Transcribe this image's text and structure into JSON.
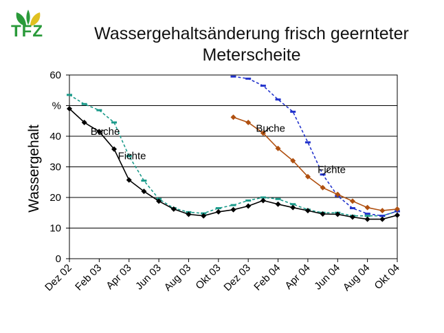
{
  "logo": {
    "text": "TFZ",
    "colors": {
      "green": "#2a9a3a",
      "yellow": "#e0c020"
    }
  },
  "chart_data": {
    "type": "line",
    "title_line1": "Wassergehaltsänderung frisch geernteter",
    "title_line2": "Meterscheite",
    "ylabel": "Wassergehalt",
    "yunit": "%",
    "ylim": [
      0,
      60
    ],
    "yticks": [
      0,
      10,
      20,
      30,
      40,
      50,
      60
    ],
    "ytick_labels": [
      "0",
      "10",
      "20",
      "30",
      "40",
      "%",
      "60"
    ],
    "x_range": [
      0,
      22
    ],
    "x_categories": [
      "Dez 02",
      "Feb 03",
      "Apr 03",
      "Jun 03",
      "Aug 03",
      "Okt 03",
      "Dez 03",
      "Feb 04",
      "Apr 04",
      "Jun 04",
      "Aug 04",
      "Okt 04"
    ],
    "x_category_positions": [
      0,
      2,
      4,
      6,
      8,
      10,
      12,
      14,
      16,
      18,
      20,
      22
    ],
    "grid": "horizontal",
    "series": [
      {
        "name": "Fichte",
        "batch": 1,
        "color": "#1a9a8a",
        "dash": "4,3",
        "marker": "dash",
        "x": [
          0,
          1,
          2,
          3,
          4,
          5,
          6,
          7,
          8,
          9,
          10,
          11,
          12,
          13,
          14,
          15,
          16,
          17,
          18,
          19,
          20,
          21,
          22
        ],
        "y": [
          53.5,
          50.5,
          48.5,
          44.5,
          33.5,
          25.5,
          19.5,
          16.5,
          15.2,
          14.8,
          16.5,
          17.5,
          19,
          20,
          19.5,
          17.8,
          16,
          15,
          15,
          14,
          14,
          14,
          15.5
        ]
      },
      {
        "name": "Buche",
        "batch": 1,
        "color": "#000000",
        "dash": "",
        "marker": "diamond",
        "x": [
          0,
          1,
          2,
          3,
          4,
          5,
          6,
          7,
          8,
          9,
          10,
          11,
          12,
          13,
          14,
          15,
          16,
          17,
          18,
          19,
          20,
          21,
          22
        ],
        "y": [
          49,
          44.5,
          41.5,
          35.8,
          25.7,
          22,
          18.8,
          16.2,
          14.5,
          14,
          15.3,
          16,
          17.2,
          19,
          17.8,
          16.7,
          15.7,
          14.6,
          14.5,
          13.6,
          12.9,
          12.9,
          14.2
        ]
      },
      {
        "name": "Fichte",
        "batch": 2,
        "color": "#2233cc",
        "dash": "4,3",
        "marker": "dash",
        "x": [
          11,
          12,
          13,
          14,
          15,
          16,
          17,
          18,
          19,
          20,
          21,
          22
        ],
        "y": [
          59.5,
          58.8,
          56.5,
          52,
          48,
          38,
          27.5,
          20.5,
          16.5,
          14.7,
          14,
          15.5
        ]
      },
      {
        "name": "Buche",
        "batch": 2,
        "color": "#b05010",
        "dash": "",
        "marker": "diamond",
        "x": [
          11,
          12,
          13,
          14,
          15,
          16,
          17,
          18,
          19,
          20,
          21,
          22
        ],
        "y": [
          46.2,
          44.5,
          41,
          36,
          32,
          26.8,
          23.2,
          21,
          18.8,
          16.7,
          15.7,
          16.2
        ]
      }
    ],
    "annotations": [
      {
        "text": "Fichte",
        "target_series": 0,
        "x": 4.2,
        "y": 32.5
      },
      {
        "text": "Buche",
        "target_series": 1,
        "x": 2.4,
        "y": 40.5
      },
      {
        "text": "Buche",
        "target_series": 3,
        "x": 13.5,
        "y": 41.5
      },
      {
        "text": "Fichte",
        "target_series": 2,
        "x": 17.6,
        "y": 28
      }
    ]
  }
}
